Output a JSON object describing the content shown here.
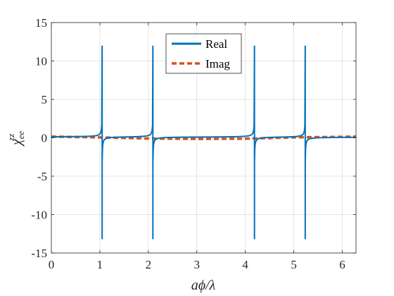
{
  "chart_data": {
    "type": "line",
    "xlabel": "aϕ/λ",
    "ylabel": "χ",
    "ylabel_sup": "zz",
    "ylabel_sub": "ee",
    "xlim": [
      0,
      6.2832
    ],
    "ylim": [
      -15,
      15
    ],
    "xticks": [
      0,
      1,
      2,
      3,
      4,
      5,
      6
    ],
    "yticks": [
      -15,
      -10,
      -5,
      0,
      5,
      10,
      15
    ],
    "yticklabels": [
      "-15",
      "-10",
      "-5",
      "0",
      "5",
      "10",
      "15"
    ],
    "grid": true,
    "legend_position": "top-center",
    "series": [
      {
        "name": "Real",
        "color": "#0072BD",
        "style": "solid",
        "poles": [
          1.0472,
          2.0944,
          4.1888,
          5.236
        ],
        "peak_values": [
          12,
          -13.2
        ],
        "baseline_value": 0.1
      },
      {
        "name": "Imag",
        "color": "#D95319",
        "style": "dashed",
        "values_x": [
          0,
          1,
          2,
          3,
          4,
          5,
          6.2832
        ],
        "values_y": [
          0.15,
          0.05,
          -0.1,
          -0.15,
          -0.12,
          0.05,
          0.15
        ]
      }
    ]
  }
}
